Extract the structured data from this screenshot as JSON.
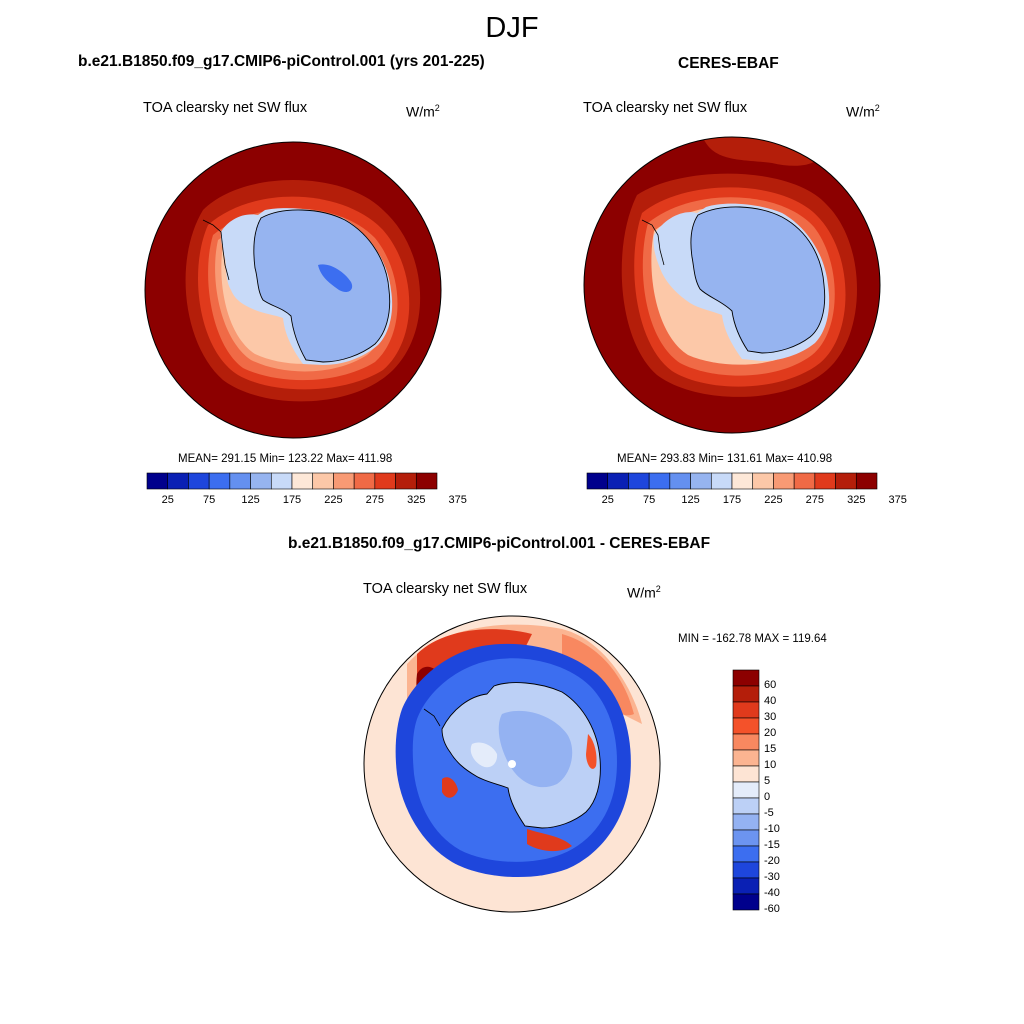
{
  "season": "DJF",
  "panels": {
    "model": {
      "title": "b.e21.B1850.f09_g17.CMIP6-piControl.001 (yrs 201-225)",
      "variable": "TOA clearsky net SW flux",
      "units": "W/m",
      "units_exp": "2",
      "stats": "MEAN= 291.15  Min= 123.22  Max= 411.98"
    },
    "obs": {
      "title": "CERES-EBAF",
      "variable": "TOA clearsky net SW flux",
      "units": "W/m",
      "units_exp": "2",
      "stats": "MEAN= 293.83  Min= 131.61  Max= 410.98"
    },
    "diff": {
      "title": "b.e21.B1850.f09_g17.CMIP6-piControl.001 - CERES-EBAF",
      "variable": "TOA clearsky net SW flux",
      "units": "W/m",
      "units_exp": "2",
      "stats": "MIN = -162.78 MAX = 119.64"
    }
  },
  "colorbar_abs": {
    "colors": [
      "#00008c",
      "#0a20b4",
      "#1e46dc",
      "#3c6ef0",
      "#6490f0",
      "#96b4f0",
      "#c8daf8",
      "#fde8d8",
      "#fcc8a8",
      "#f89a74",
      "#f06a46",
      "#e03a1c",
      "#b41e0a",
      "#8c0000"
    ],
    "tick_labels": [
      "25",
      "75",
      "125",
      "175",
      "225",
      "275",
      "325",
      "375"
    ]
  },
  "colorbar_diff": {
    "colors": [
      "#8c0000",
      "#b41e0a",
      "#e03a1c",
      "#f4522a",
      "#f88860",
      "#fbb491",
      "#fde4d4",
      "#e4ecfa",
      "#bcd0f6",
      "#94b2f2",
      "#6c94f0",
      "#3c6ef0",
      "#1e46dc",
      "#0a20b4",
      "#00008c"
    ],
    "tick_labels": [
      "60",
      "40",
      "30",
      "20",
      "15",
      "10",
      "5",
      "0",
      "-5",
      "-10",
      "-15",
      "-20",
      "-30",
      "-40",
      "-60"
    ]
  }
}
